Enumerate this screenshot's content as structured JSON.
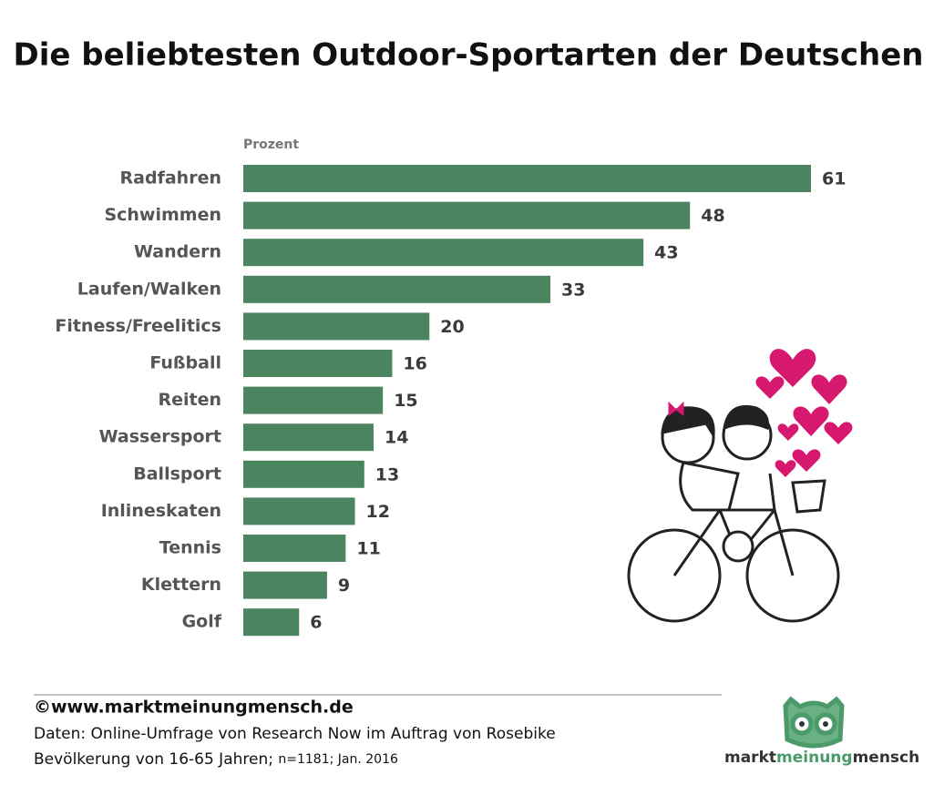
{
  "chart_data": {
    "type": "bar",
    "orientation": "horizontal",
    "title": "Die beliebtesten Outdoor-Sportarten der Deutschen",
    "x_label": "Prozent",
    "categories": [
      "Radfahren",
      "Schwimmen",
      "Wandern",
      "Laufen/Walken",
      "Fitness/Freelitics",
      "Fußball",
      "Reiten",
      "Wassersport",
      "Ballsport",
      "Inlineskaten",
      "Tennis",
      "Klettern",
      "Golf"
    ],
    "values": [
      61,
      48,
      43,
      33,
      20,
      16,
      15,
      14,
      13,
      12,
      11,
      9,
      6
    ],
    "color": "#4a8560"
  },
  "footer": {
    "copyright": "©www.marktmeinungmensch.de",
    "source": "Daten: Online-Umfrage von Research Now im Auftrag von Rosebike",
    "population": "Bevölkerung von 16-65 Jahren;",
    "sample": "n=1181; Jan. 2016"
  },
  "logo": {
    "part1": "markt",
    "part2": "meinung",
    "part3": "mensch"
  }
}
